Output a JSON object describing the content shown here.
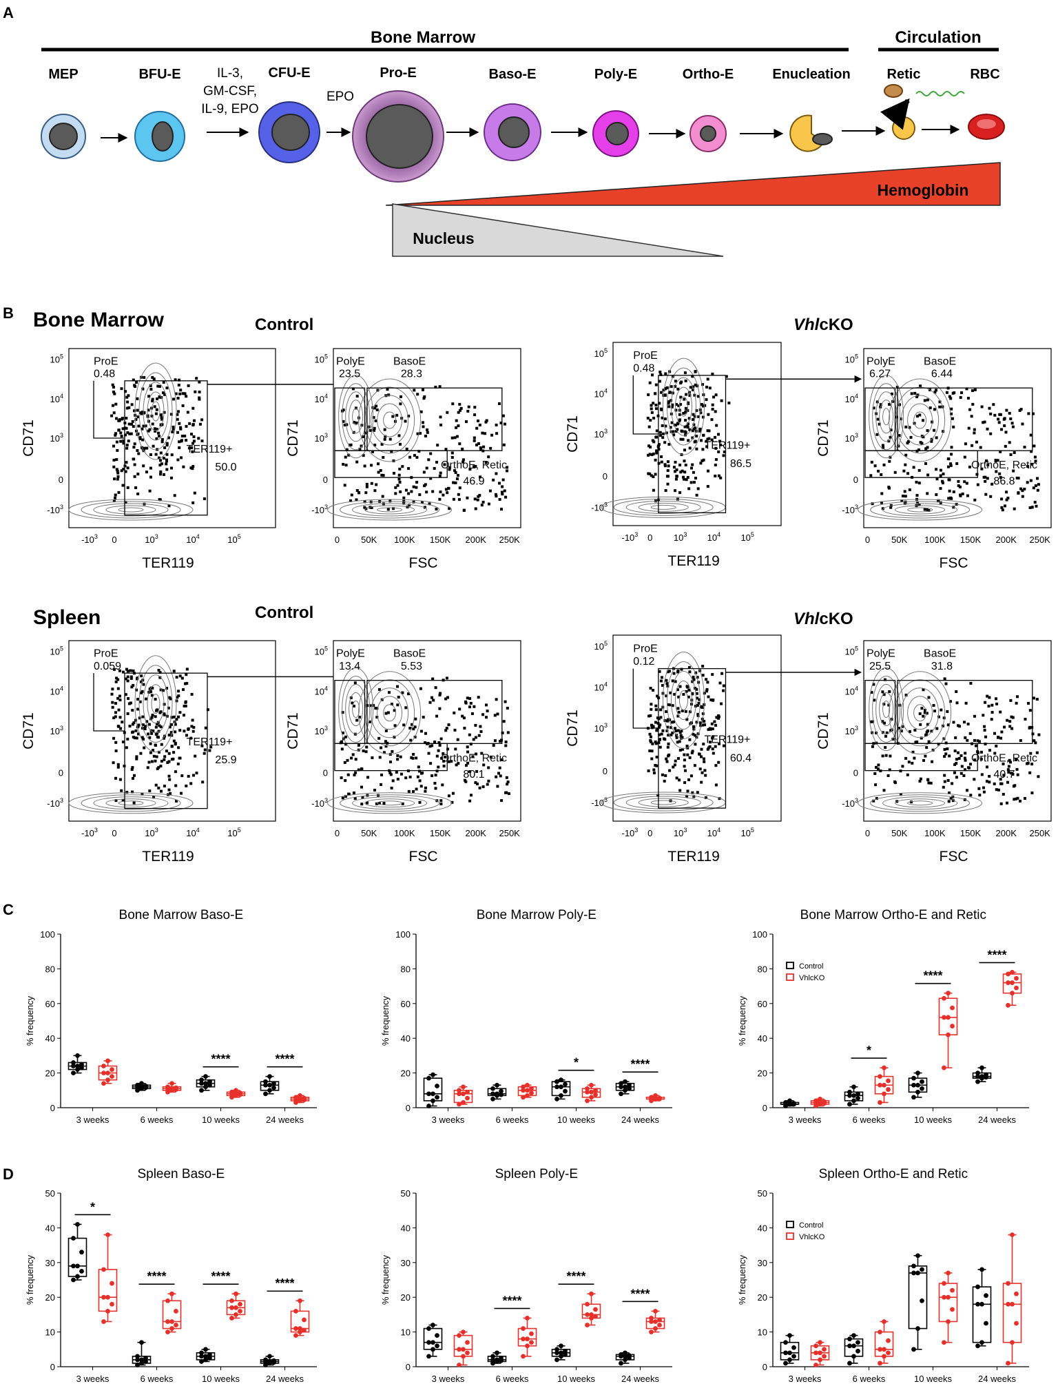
{
  "panel_letters": {
    "a": "A",
    "b": "B",
    "c": "C",
    "d": "D"
  },
  "panel_a": {
    "bone_marrow": "Bone Marrow",
    "circulation": "Circulation",
    "stages": [
      "MEP",
      "BFU-E",
      "CFU-E",
      "Pro-E",
      "Baso-E",
      "Poly-E",
      "Ortho-E",
      "Enucleation",
      "Retic",
      "RBC"
    ],
    "cytokines": [
      "IL-3,",
      "GM-CSF,",
      "IL-9, EPO"
    ],
    "epo": "EPO",
    "hemoglobin": "Hemoglobin",
    "nucleus": "Nucleus",
    "colors": {
      "hemoglobin": "#e8412a",
      "nucleus": "#d9d9d9",
      "mep": "#bcd7ee",
      "bfu": "#5bc8f2",
      "cfu": "#4d5fe0",
      "proe": "#b07ab8",
      "baso": "#c77be8",
      "poly": "#e23ce8",
      "ortho": "#f08ccf",
      "retic": "#f7c64a",
      "rbc": "#d82020",
      "nucleus_fill": "#5a5a5a"
    }
  },
  "panel_b": {
    "bone_marrow": "Bone Marrow",
    "spleen": "Spleen",
    "control": "Control",
    "vhl_italic": "Vhl",
    "cko": "cKO",
    "y_label": "CD71",
    "x_ter": "TER119",
    "x_fsc": "FSC",
    "y_ticks": [
      "10",
      "10",
      "10",
      "0",
      "-10"
    ],
    "y_exps": [
      "5",
      "4",
      "3",
      "",
      "3"
    ],
    "ter_ticks": [
      "-10",
      "0",
      "10",
      "10",
      "10"
    ],
    "ter_exps": [
      "3",
      "",
      "3",
      "4",
      "5"
    ],
    "fsc_ticks": [
      "0",
      "50K",
      "100K",
      "150K",
      "200K",
      "250K"
    ],
    "gates": {
      "proe": "ProE",
      "ter119": "TER119+",
      "polye": "PolyE",
      "basoe": "BasoE",
      "ortho": "OrthoE, Retic"
    },
    "plots": {
      "bm_ctrl": {
        "proe": "0.48",
        "ter119": "50.0",
        "polye": "23.5",
        "basoe": "28.3",
        "ortho": "46.9"
      },
      "bm_ko": {
        "proe": "0.48",
        "ter119": "86.5",
        "polye": "6.27",
        "basoe": "6.44",
        "ortho": "86.8"
      },
      "sp_ctrl": {
        "proe": "0.059",
        "ter119": "25.9",
        "polye": "13.4",
        "basoe": "5.53",
        "ortho": "80.1"
      },
      "sp_ko": {
        "proe": "0.12",
        "ter119": "60.4",
        "polye": "25.5",
        "basoe": "31.8",
        "ortho": "40.7"
      }
    }
  },
  "chart_data": [
    {
      "id": "bm_baso",
      "type": "box",
      "title": "Bone Marrow Baso-E",
      "ylabel": "% frequency",
      "ylim": [
        0,
        100
      ],
      "yticks": [
        0,
        20,
        40,
        60,
        80,
        100
      ],
      "categories": [
        "3 weeks",
        "6 weeks",
        "10 weeks",
        "24 weeks"
      ],
      "series": [
        {
          "name": "Control",
          "color": "#000000",
          "boxes": [
            [
              20,
              22,
              24,
              26,
              30
            ],
            [
              10,
              11,
              12,
              13,
              14
            ],
            [
              10,
              12,
              14,
              16,
              18
            ],
            [
              8,
              10,
              13,
              15,
              18
            ]
          ]
        },
        {
          "name": "VhlcKO",
          "color": "#e8302a",
          "boxes": [
            [
              14,
              16,
              20,
              24,
              27
            ],
            [
              9,
              10,
              11,
              12,
              14
            ],
            [
              6,
              7,
              8,
              9,
              10
            ],
            [
              3,
              4,
              5,
              6,
              7
            ]
          ]
        }
      ],
      "significance": [
        null,
        null,
        "****",
        "****"
      ]
    },
    {
      "id": "bm_poly",
      "type": "box",
      "title": "Bone Marrow Poly-E",
      "ylabel": "% frequency",
      "ylim": [
        0,
        100
      ],
      "yticks": [
        0,
        20,
        40,
        60,
        80,
        100
      ],
      "categories": [
        "3 weeks",
        "6 weeks",
        "10 weeks",
        "24 weeks"
      ],
      "series": [
        {
          "name": "Control",
          "color": "#000000",
          "boxes": [
            [
              1,
              4,
              8,
              17,
              19
            ],
            [
              5,
              7,
              8,
              11,
              13
            ],
            [
              5,
              7,
              12,
              15,
              16
            ],
            [
              8,
              10,
              12,
              14,
              15
            ]
          ]
        },
        {
          "name": "VhlcKO",
          "color": "#e8302a",
          "boxes": [
            [
              2,
              3,
              8,
              10,
              12
            ],
            [
              6,
              7,
              10,
              12,
              13
            ],
            [
              4,
              6,
              9,
              11,
              13
            ],
            [
              4,
              5,
              5,
              6,
              7
            ]
          ]
        }
      ],
      "significance": [
        null,
        null,
        "*",
        "****"
      ]
    },
    {
      "id": "bm_ortho",
      "type": "box",
      "title": "Bone Marrow Ortho-E and Retic",
      "ylabel": "% frequency",
      "ylim": [
        0,
        100
      ],
      "yticks": [
        0,
        20,
        40,
        60,
        80,
        100
      ],
      "categories": [
        "3 weeks",
        "6 weeks",
        "10 weeks",
        "24 weeks"
      ],
      "legend": [
        "Control",
        "VhlcKO"
      ],
      "series": [
        {
          "name": "Control",
          "color": "#000000",
          "boxes": [
            [
              1,
              2,
              2,
              3,
              4
            ],
            [
              2,
              4,
              7,
              9,
              12
            ],
            [
              6,
              9,
              13,
              17,
              20
            ],
            [
              15,
              17,
              18,
              20,
              23
            ]
          ]
        },
        {
          "name": "VhlcKO",
          "color": "#e8302a",
          "boxes": [
            [
              1,
              2,
              3,
              4,
              5
            ],
            [
              3,
              8,
              13,
              18,
              23
            ],
            [
              23,
              42,
              52,
              63,
              66
            ],
            [
              59,
              66,
              72,
              77,
              78
            ]
          ]
        }
      ],
      "significance": [
        null,
        "*",
        "****",
        "****"
      ]
    },
    {
      "id": "sp_baso",
      "type": "box",
      "title": "Spleen Baso-E",
      "ylabel": "% frequency",
      "ylim": [
        0,
        50
      ],
      "yticks": [
        0,
        10,
        20,
        30,
        40,
        50
      ],
      "categories": [
        "3 weeks",
        "6 weeks",
        "10 weeks",
        "24 weeks"
      ],
      "series": [
        {
          "name": "Control",
          "color": "#000000",
          "boxes": [
            [
              25,
              26,
              29,
              37,
              41
            ],
            [
              0.5,
              1,
              2,
              3,
              7
            ],
            [
              1.5,
              2,
              3,
              4,
              5
            ],
            [
              0.5,
              1,
              1.5,
              2,
              3
            ]
          ]
        },
        {
          "name": "VhlcKO",
          "color": "#e8302a",
          "boxes": [
            [
              13,
              16,
              20,
              28,
              38
            ],
            [
              10,
              11,
              13,
              19,
              21
            ],
            [
              14,
              15,
              17,
              19,
              21
            ],
            [
              9,
              10,
              11,
              16,
              19
            ]
          ]
        }
      ],
      "significance": [
        "*",
        "****",
        "****",
        "****"
      ]
    },
    {
      "id": "sp_poly",
      "type": "box",
      "title": "Spleen Poly-E",
      "ylabel": "% frequency",
      "ylim": [
        0,
        50
      ],
      "yticks": [
        0,
        10,
        20,
        30,
        40,
        50
      ],
      "categories": [
        "3 weeks",
        "6 weeks",
        "10 weeks",
        "24 weeks"
      ],
      "series": [
        {
          "name": "Control",
          "color": "#000000",
          "boxes": [
            [
              3,
              5,
              7,
              11,
              12
            ],
            [
              1,
              1.5,
              2,
              3,
              4
            ],
            [
              2,
              3,
              4,
              5,
              6
            ],
            [
              1,
              2,
              3,
              3.5,
              4
            ]
          ]
        },
        {
          "name": "VhlcKO",
          "color": "#e8302a",
          "boxes": [
            [
              0.5,
              3,
              5,
              9,
              10
            ],
            [
              3,
              6,
              8,
              11,
              14
            ],
            [
              12,
              14,
              15,
              18,
              21
            ],
            [
              10,
              11,
              13,
              14,
              16
            ]
          ]
        }
      ],
      "significance": [
        null,
        "****",
        "****",
        "****"
      ]
    },
    {
      "id": "sp_ortho",
      "type": "box",
      "title": "Spleen Ortho-E and Retic",
      "ylabel": "% frequency",
      "ylim": [
        0,
        50
      ],
      "yticks": [
        0,
        10,
        20,
        30,
        40,
        50
      ],
      "categories": [
        "3 weeks",
        "6 weeks",
        "10 weeks",
        "24 weeks"
      ],
      "legend": [
        "Control",
        "VhlcKO"
      ],
      "series": [
        {
          "name": "Control",
          "color": "#000000",
          "boxes": [
            [
              1,
              2,
              4,
              7,
              9
            ],
            [
              1,
              3,
              6,
              8,
              9
            ],
            [
              5,
              11,
              27,
              29,
              32
            ],
            [
              6,
              7,
              18,
              23,
              28
            ]
          ]
        },
        {
          "name": "VhlcKO",
          "color": "#e8302a",
          "boxes": [
            [
              0.5,
              2,
              4,
              6,
              7
            ],
            [
              1,
              3,
              5,
              10,
              13
            ],
            [
              7,
              13,
              20,
              24,
              27
            ],
            [
              1,
              7,
              18,
              24,
              38
            ]
          ]
        }
      ],
      "significance": [
        null,
        null,
        null,
        null
      ]
    }
  ]
}
